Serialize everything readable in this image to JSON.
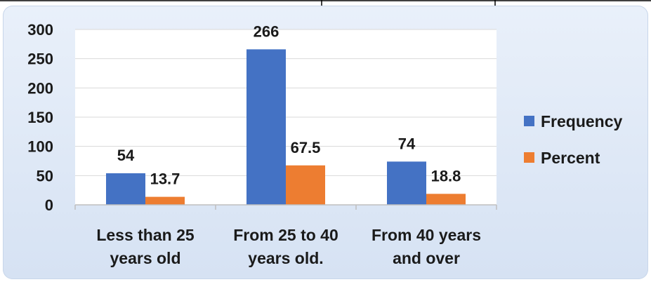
{
  "chart_data": {
    "type": "bar",
    "categories": [
      "Less than 25 years old",
      "From 25 to 40 years old.",
      "From 40 years and over"
    ],
    "category_lines": [
      [
        "Less than 25",
        "years old"
      ],
      [
        "From 25 to 40",
        "years old."
      ],
      [
        "From 40 years",
        "and over"
      ]
    ],
    "series": [
      {
        "name": "Frequency",
        "values": [
          54,
          266,
          74
        ],
        "labels": [
          "54",
          "266",
          "74"
        ],
        "color": "#4472c4"
      },
      {
        "name": "Percent",
        "values": [
          13.7,
          67.5,
          18.8
        ],
        "labels": [
          "13.7",
          "67.5",
          "18.8"
        ],
        "color": "#ed7d31"
      }
    ],
    "y_ticks": [
      0,
      50,
      100,
      150,
      200,
      250,
      300
    ],
    "ylim": [
      0,
      300
    ],
    "grid": true,
    "legend_position": "right",
    "title": "",
    "xlabel": "",
    "ylabel": ""
  },
  "colors": {
    "background_gradient_top": "#e9f0fa",
    "background_gradient_bottom": "#d6e2f3",
    "plot_area": "#ffffff",
    "gridline": "#d9d9d9",
    "axis": "#bfbfbf"
  }
}
